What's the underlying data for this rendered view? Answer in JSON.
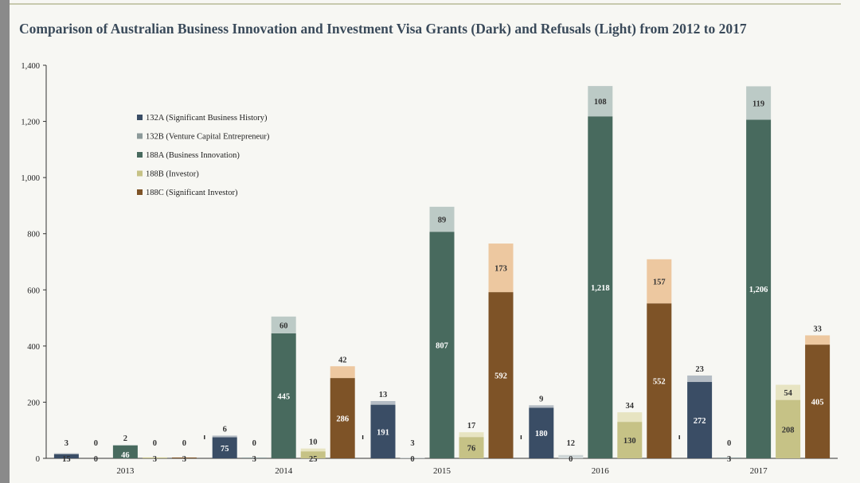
{
  "chart_data": {
    "type": "bar",
    "stacked": true,
    "title": "Comparison of Australian Business Innovation and Investment Visa Grants (Dark) and Refusals (Light) from 2012 to 2017",
    "ylim": [
      0,
      1400
    ],
    "yticks": [
      "0",
      "200",
      "400",
      "600",
      "800",
      "1,000",
      "1,200",
      "1,400"
    ],
    "categories": [
      "2013",
      "2014",
      "2015",
      "2016",
      "2017"
    ],
    "legend_position": "top-left",
    "series": [
      {
        "name": "132A (Significant Business History)",
        "color": "#3a4d65",
        "light": "#b4bcc4",
        "grants": [
          15,
          75,
          191,
          180,
          272
        ],
        "refusals": [
          3,
          6,
          13,
          9,
          23
        ],
        "grant_labels": [
          "15",
          "75",
          "191",
          "180",
          "272"
        ],
        "refusal_labels": [
          "3",
          "6",
          "13",
          "9",
          "23"
        ]
      },
      {
        "name": "132B (Venture Capital Entrepreneur)",
        "color": "#8c9a9a",
        "light": "#cfd6d6",
        "grants": [
          0,
          3,
          0,
          0,
          3
        ],
        "refusals": [
          0,
          0,
          3,
          12,
          0
        ],
        "grant_labels": [
          "0",
          "3",
          "0",
          "0",
          "3"
        ],
        "refusal_labels": [
          "0",
          "0",
          "3",
          "12",
          "0"
        ]
      },
      {
        "name": "188A (Business Innovation)",
        "color": "#486a5e",
        "light": "#bccac6",
        "grants": [
          46,
          445,
          807,
          1218,
          1206
        ],
        "refusals": [
          2,
          60,
          89,
          108,
          119
        ],
        "grant_labels": [
          "46",
          "445",
          "807",
          "1,218",
          "1,206"
        ],
        "refusal_labels": [
          "2",
          "60",
          "89",
          "108",
          "119"
        ]
      },
      {
        "name": "188B (Investor)",
        "color": "#c6c286",
        "light": "#e7e4c2",
        "grants": [
          3,
          25,
          76,
          130,
          208
        ],
        "refusals": [
          0,
          10,
          17,
          34,
          54
        ],
        "grant_labels": [
          "3",
          "25",
          "76",
          "130",
          "208"
        ],
        "refusal_labels": [
          "0",
          "10",
          "17",
          "34",
          "54"
        ]
      },
      {
        "name": "188C (Significant Investor)",
        "color": "#7e5327",
        "light": "#edc8a0",
        "grants": [
          3,
          286,
          592,
          552,
          405
        ],
        "refusals": [
          0,
          42,
          173,
          157,
          33
        ],
        "grant_labels": [
          "3",
          "286",
          "592",
          "552",
          "405"
        ],
        "refusal_labels": [
          "0",
          "42",
          "173",
          "157",
          "33"
        ]
      }
    ]
  }
}
